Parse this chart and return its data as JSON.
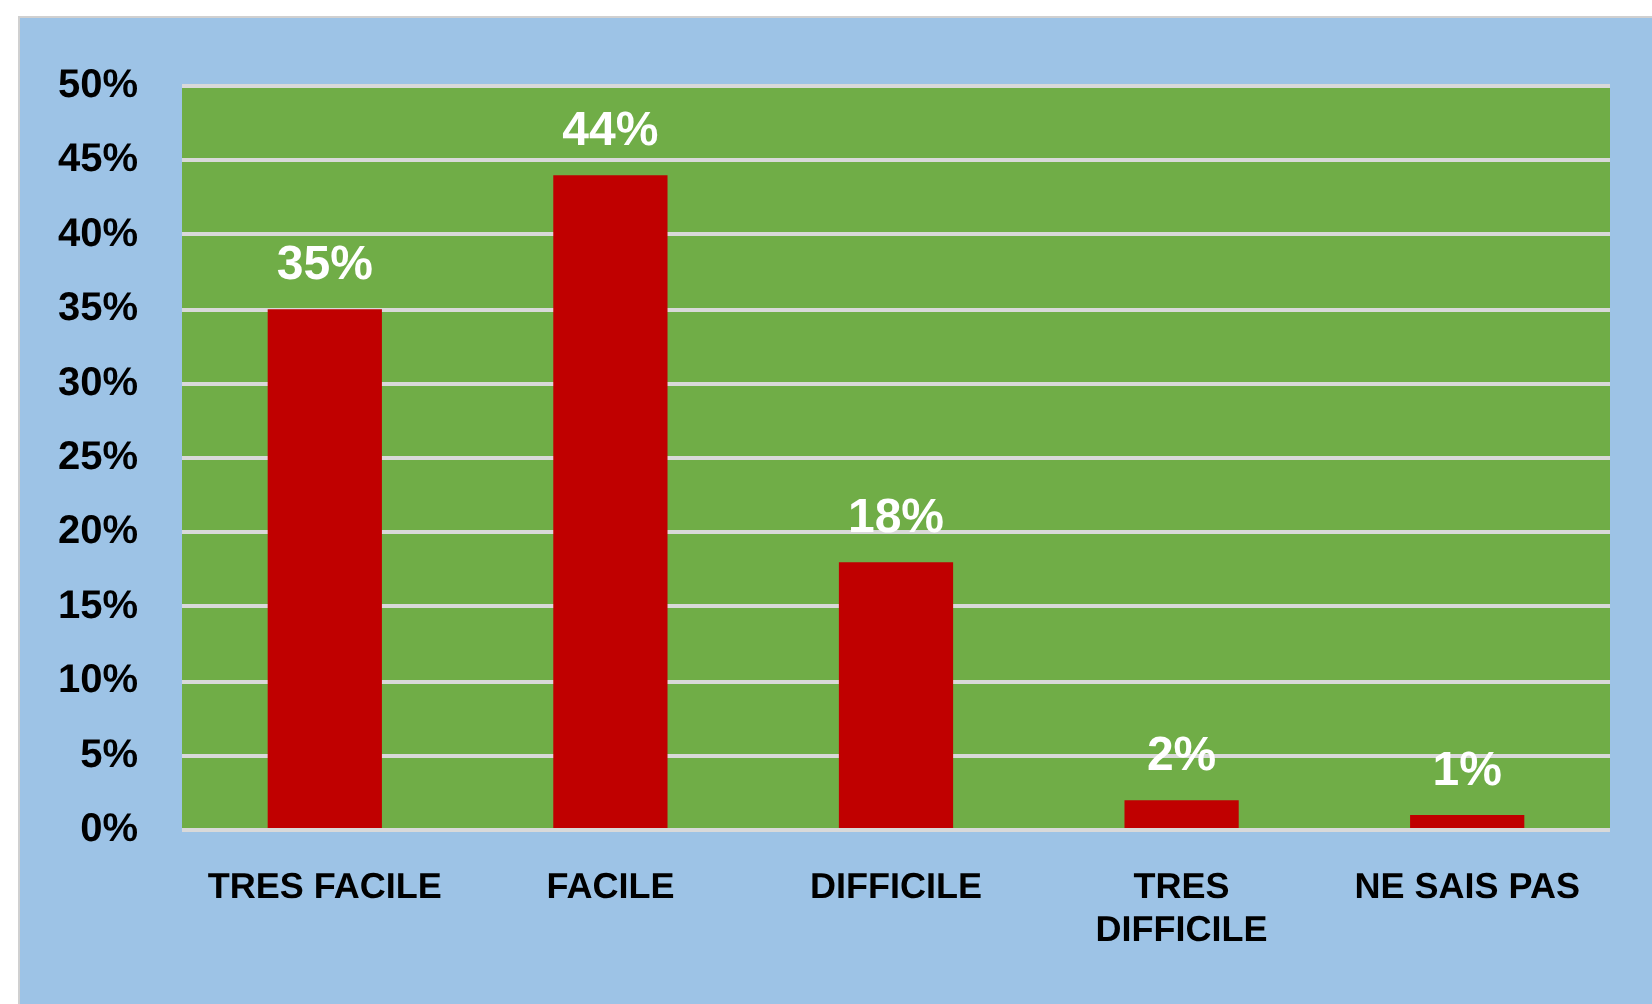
{
  "chart_data": {
    "type": "bar",
    "categories": [
      "TRES FACILE",
      "FACILE",
      "DIFFICILE",
      "TRES DIFFICILE",
      "NE SAIS PAS"
    ],
    "values": [
      35,
      44,
      18,
      2,
      1
    ],
    "color": "#c00000",
    "ylim": [
      0,
      50
    ],
    "yticks": [
      {
        "value": 0,
        "label": "0%"
      },
      {
        "value": 5,
        "label": "5%"
      },
      {
        "value": 10,
        "label": "10%"
      },
      {
        "value": 15,
        "label": "15%"
      },
      {
        "value": 20,
        "label": "20%"
      },
      {
        "value": 25,
        "label": "25%"
      },
      {
        "value": 30,
        "label": "30%"
      },
      {
        "value": 35,
        "label": "35%"
      },
      {
        "value": 40,
        "label": "40%"
      },
      {
        "value": 45,
        "label": "45%"
      },
      {
        "value": 50,
        "label": "50%"
      }
    ],
    "grid": "y",
    "legend": false,
    "value_labels": [
      "35%",
      "44%",
      "18%",
      "2%",
      "1%"
    ]
  }
}
